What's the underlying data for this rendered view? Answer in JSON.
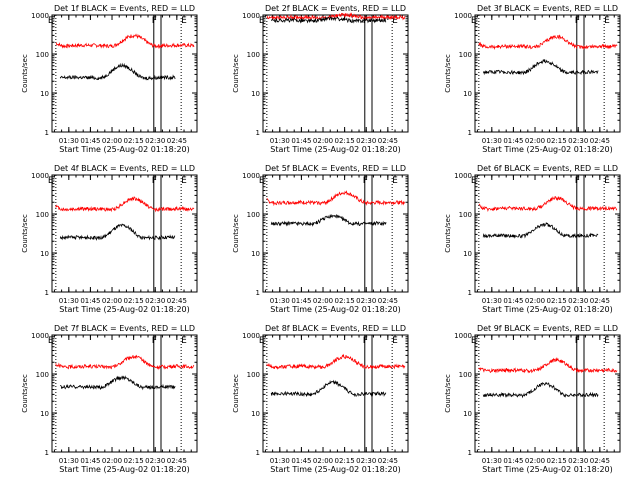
{
  "chart_data": [
    {
      "type": "line",
      "title": "Det 1f BLACK = Events, RED = LLD",
      "ylabel": "Counts/sec",
      "xlabel": "Start Time (25-Aug-02 01:18:20)",
      "xticks": [
        "01:30",
        "01:45",
        "02:00",
        "02:15",
        "02:30",
        "02:45"
      ],
      "yticks": [
        "1",
        "10",
        "100",
        "1000"
      ],
      "ylim": [
        1,
        1000
      ],
      "yscale": "log",
      "markers": [
        "E",
        "F",
        "E"
      ],
      "series": [
        {
          "color": "#ff0000",
          "level": 160,
          "amp": 1.85,
          "start": "01:21",
          "end": "02:57",
          "peak": "02:15"
        },
        {
          "color": "#000000",
          "level": 24,
          "amp": 2.1,
          "start": "01:24",
          "end": "02:44",
          "peak": "02:07"
        }
      ]
    },
    {
      "type": "line",
      "title": "Det 2f BLACK = Events, RED = LLD",
      "ylabel": "Counts/sec",
      "xlabel": "Start Time (25-Aug-02 01:18:20)",
      "xticks": [
        "01:30",
        "01:45",
        "02:00",
        "02:15",
        "02:30",
        "02:45"
      ],
      "yticks": [
        "1",
        "10",
        "100",
        "1000"
      ],
      "ylim": [
        1,
        1000
      ],
      "yscale": "log",
      "markers": [
        "E",
        "F",
        "E"
      ],
      "series": [
        {
          "color": "#ff0000",
          "level": 840,
          "amp": 1.2,
          "start": "01:21",
          "end": "02:57",
          "peak": "02:15"
        },
        {
          "color": "#000000",
          "level": 700,
          "amp": 1.15,
          "start": "01:24",
          "end": "02:44",
          "peak": "02:07"
        }
      ]
    },
    {
      "type": "line",
      "title": "Det 3f BLACK = Events, RED = LLD",
      "ylabel": "Counts/sec",
      "xlabel": "Start Time (25-Aug-02 01:18:20)",
      "xticks": [
        "01:30",
        "01:45",
        "02:00",
        "02:15",
        "02:30",
        "02:45"
      ],
      "yticks": [
        "1",
        "10",
        "100",
        "1000"
      ],
      "ylim": [
        1,
        1000
      ],
      "yscale": "log",
      "markers": [
        "E",
        "F",
        "E"
      ],
      "series": [
        {
          "color": "#ff0000",
          "level": 150,
          "amp": 1.85,
          "start": "01:21",
          "end": "02:57",
          "peak": "02:15"
        },
        {
          "color": "#000000",
          "level": 33,
          "amp": 2.0,
          "start": "01:24",
          "end": "02:44",
          "peak": "02:07"
        }
      ]
    },
    {
      "type": "line",
      "title": "Det 4f BLACK = Events, RED = LLD",
      "ylabel": "Counts/sec",
      "xlabel": "Start Time (25-Aug-02 01:18:20)",
      "xticks": [
        "01:30",
        "01:45",
        "02:00",
        "02:15",
        "02:30",
        "02:45"
      ],
      "yticks": [
        "1",
        "10",
        "100",
        "1000"
      ],
      "ylim": [
        1,
        1000
      ],
      "yscale": "log",
      "markers": [
        "E",
        "F",
        "E"
      ],
      "series": [
        {
          "color": "#ff0000",
          "level": 130,
          "amp": 1.9,
          "start": "01:21",
          "end": "02:57",
          "peak": "02:15"
        },
        {
          "color": "#000000",
          "level": 24,
          "amp": 2.1,
          "start": "01:24",
          "end": "02:44",
          "peak": "02:07"
        }
      ]
    },
    {
      "type": "line",
      "title": "Det 5f BLACK = Events, RED = LLD",
      "ylabel": "Counts/sec",
      "xlabel": "Start Time (25-Aug-02 01:18:20)",
      "xticks": [
        "01:30",
        "01:45",
        "02:00",
        "02:15",
        "02:30",
        "02:45"
      ],
      "yticks": [
        "1",
        "10",
        "100",
        "1000"
      ],
      "ylim": [
        1,
        1000
      ],
      "yscale": "log",
      "markers": [
        "E",
        "F",
        "E"
      ],
      "series": [
        {
          "color": "#ff0000",
          "level": 190,
          "amp": 1.85,
          "start": "01:21",
          "end": "02:57",
          "peak": "02:15"
        },
        {
          "color": "#000000",
          "level": 55,
          "amp": 1.6,
          "start": "01:24",
          "end": "02:44",
          "peak": "02:07"
        }
      ]
    },
    {
      "type": "line",
      "title": "Det 6f BLACK = Events, RED = LLD",
      "ylabel": "Counts/sec",
      "xlabel": "Start Time (25-Aug-02 01:18:20)",
      "xticks": [
        "01:30",
        "01:45",
        "02:00",
        "02:15",
        "02:30",
        "02:45"
      ],
      "yticks": [
        "1",
        "10",
        "100",
        "1000"
      ],
      "ylim": [
        1,
        1000
      ],
      "yscale": "log",
      "markers": [
        "E",
        "F",
        "E"
      ],
      "series": [
        {
          "color": "#ff0000",
          "level": 135,
          "amp": 1.9,
          "start": "01:21",
          "end": "02:57",
          "peak": "02:15"
        },
        {
          "color": "#000000",
          "level": 27,
          "amp": 2.0,
          "start": "01:24",
          "end": "02:44",
          "peak": "02:07"
        }
      ]
    },
    {
      "type": "line",
      "title": "Det 7f BLACK = Events, RED = LLD",
      "ylabel": "Counts/sec",
      "xlabel": "Start Time (25-Aug-02 01:18:20)",
      "xticks": [
        "01:30",
        "01:45",
        "02:00",
        "02:15",
        "02:30",
        "02:45"
      ],
      "yticks": [
        "1",
        "10",
        "100",
        "1000"
      ],
      "ylim": [
        1,
        1000
      ],
      "yscale": "log",
      "markers": [
        "E",
        "F",
        "E"
      ],
      "series": [
        {
          "color": "#ff0000",
          "level": 150,
          "amp": 1.85,
          "start": "01:21",
          "end": "02:57",
          "peak": "02:15"
        },
        {
          "color": "#000000",
          "level": 45,
          "amp": 1.8,
          "start": "01:24",
          "end": "02:44",
          "peak": "02:07"
        }
      ]
    },
    {
      "type": "line",
      "title": "Det 8f BLACK = Events, RED = LLD",
      "ylabel": "Counts/sec",
      "xlabel": "Start Time (25-Aug-02 01:18:20)",
      "xticks": [
        "01:30",
        "01:45",
        "02:00",
        "02:15",
        "02:30",
        "02:45"
      ],
      "yticks": [
        "1",
        "10",
        "100",
        "1000"
      ],
      "ylim": [
        1,
        1000
      ],
      "yscale": "log",
      "markers": [
        "E",
        "F",
        "E"
      ],
      "series": [
        {
          "color": "#ff0000",
          "level": 150,
          "amp": 1.85,
          "start": "01:21",
          "end": "02:57",
          "peak": "02:15"
        },
        {
          "color": "#000000",
          "level": 30,
          "amp": 2.0,
          "start": "01:24",
          "end": "02:44",
          "peak": "02:07"
        }
      ]
    },
    {
      "type": "line",
      "title": "Det 9f BLACK = Events, RED = LLD",
      "ylabel": "Counts/sec",
      "xlabel": "Start Time (25-Aug-02 01:18:20)",
      "xticks": [
        "01:30",
        "01:45",
        "02:00",
        "02:15",
        "02:30",
        "02:45"
      ],
      "yticks": [
        "1",
        "10",
        "100",
        "1000"
      ],
      "ylim": [
        1,
        1000
      ],
      "yscale": "log",
      "markers": [
        "E",
        "F",
        "E"
      ],
      "series": [
        {
          "color": "#ff0000",
          "level": 120,
          "amp": 1.9,
          "start": "01:21",
          "end": "02:57",
          "peak": "02:15"
        },
        {
          "color": "#000000",
          "level": 28,
          "amp": 2.0,
          "start": "01:24",
          "end": "02:44",
          "peak": "02:07"
        }
      ]
    }
  ]
}
